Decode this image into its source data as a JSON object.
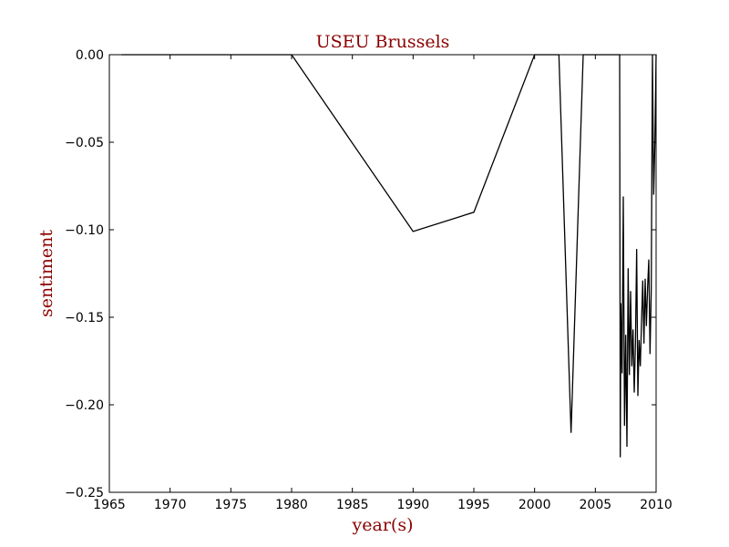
{
  "chart_data": {
    "type": "line",
    "title": "USEU Brussels",
    "xlabel": "year(s)",
    "ylabel": "sentiment",
    "xlim": [
      1965,
      2010
    ],
    "ylim": [
      -0.25,
      0.0
    ],
    "xticks": [
      1965,
      1970,
      1975,
      1980,
      1985,
      1990,
      1995,
      2000,
      2005,
      2010
    ],
    "xtick_labels": [
      "1965",
      "1970",
      "1975",
      "1980",
      "1985",
      "1990",
      "1995",
      "2000",
      "2005",
      "2010"
    ],
    "yticks": [
      0.0,
      -0.05,
      -0.1,
      -0.15,
      -0.2,
      -0.25
    ],
    "ytick_labels": [
      "0.00",
      "−0.05",
      "−0.10",
      "−0.15",
      "−0.20",
      "−0.25"
    ],
    "grid": false,
    "colors": {
      "line": "#000000",
      "title": "#8b0000",
      "labels": "#8b0000",
      "axes": "#000000"
    },
    "series": [
      {
        "x": [
          1966.0,
          1980.0,
          1990.0,
          1995.0,
          2000.0,
          2002.0,
          2003.0,
          2004.0,
          2006.5,
          2007.0,
          2007.05,
          2007.1,
          2007.2,
          2007.3,
          2007.4,
          2007.5,
          2007.6,
          2007.7,
          2007.8,
          2007.9,
          2008.0,
          2008.1,
          2008.2,
          2008.3,
          2008.4,
          2008.5,
          2008.6,
          2008.7,
          2008.8,
          2008.9,
          2009.0,
          2009.1,
          2009.2,
          2009.3,
          2009.4,
          2009.5,
          2009.6,
          2009.7,
          2009.8,
          2009.9,
          2010.0
        ],
        "y": [
          0.0,
          0.0,
          -0.101,
          -0.09,
          0.0,
          0.0,
          -0.216,
          0.0,
          0.0,
          0.0,
          -0.23,
          -0.142,
          -0.182,
          -0.081,
          -0.212,
          -0.16,
          -0.224,
          -0.122,
          -0.183,
          -0.135,
          -0.178,
          -0.157,
          -0.193,
          -0.165,
          -0.111,
          -0.195,
          -0.163,
          -0.178,
          -0.153,
          -0.129,
          -0.165,
          -0.128,
          -0.155,
          -0.133,
          -0.117,
          -0.171,
          -0.135,
          0.0,
          -0.08,
          -0.05,
          0.0
        ]
      }
    ]
  }
}
